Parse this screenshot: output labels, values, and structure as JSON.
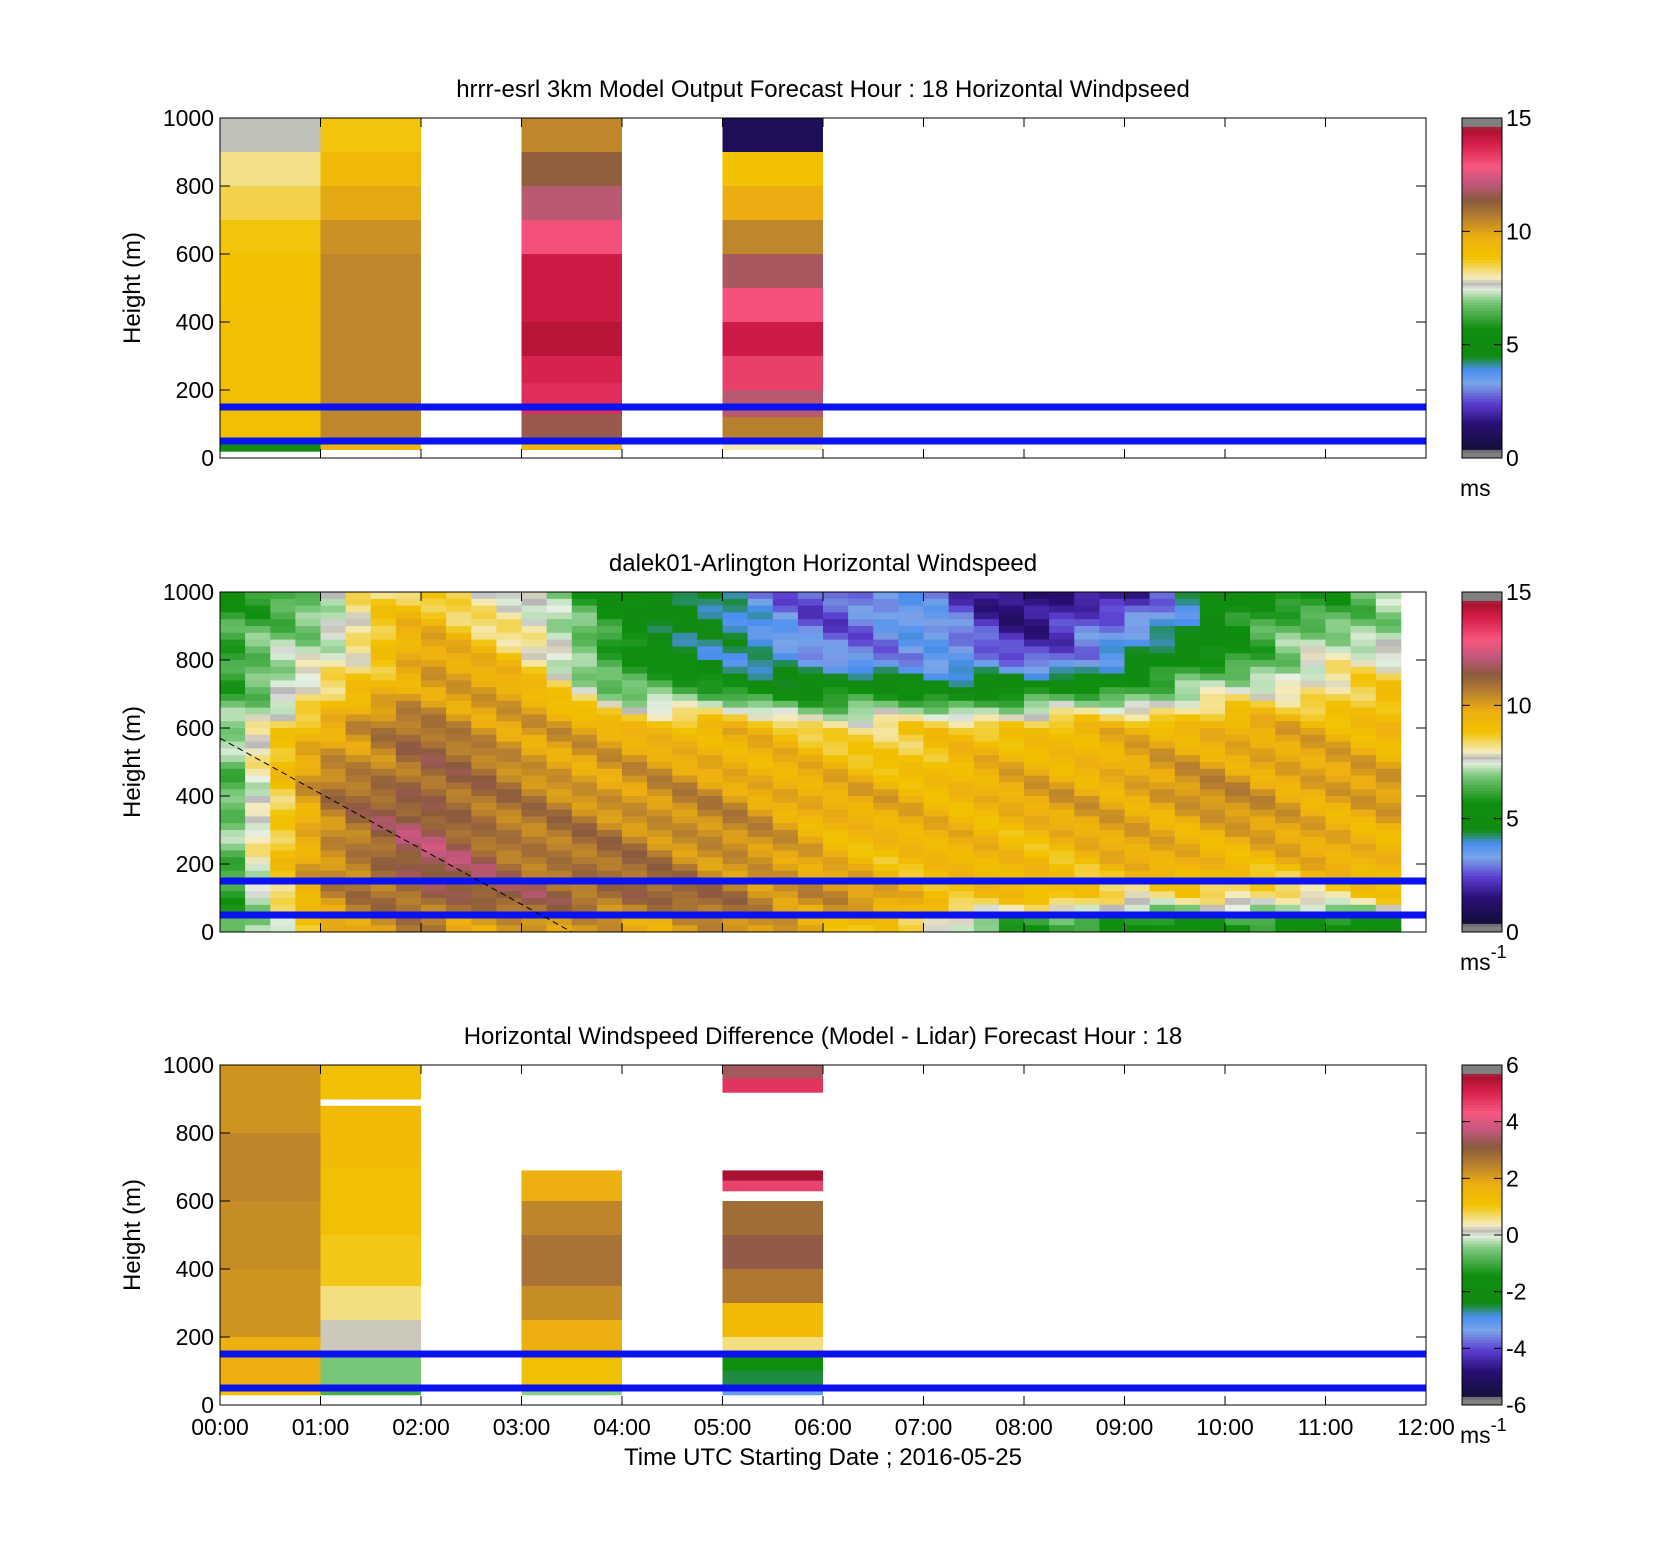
{
  "figure": {
    "xlabel": "Time UTC  Starting Date ; 2016-05-25",
    "xticks": [
      "00:00",
      "01:00",
      "02:00",
      "03:00",
      "04:00",
      "05:00",
      "06:00",
      "07:00",
      "08:00",
      "09:00",
      "10:00",
      "11:00",
      "12:00"
    ]
  },
  "chart_data": [
    {
      "type": "heatmap",
      "title": "hrrr-esrl 3km Model Output   Forecast Hour : 18 Horizontal Windpseed",
      "ylabel": "Height (m)",
      "xlim_hours": [
        0,
        12
      ],
      "ylim": [
        0,
        1000
      ],
      "yticks": [
        "0",
        "200",
        "400",
        "600",
        "800",
        "1000"
      ],
      "colorbar": {
        "range": [
          0,
          15
        ],
        "ticks": [
          "0",
          "5",
          "10",
          "15"
        ],
        "unit": "ms",
        "unit_sup": ""
      },
      "reference_lines_m": [
        50,
        150
      ],
      "columns": [
        {
          "start_hour": 0,
          "end_hour": 1,
          "cells": [
            [
              1000,
              900,
              7.7
            ],
            [
              900,
              800,
              8.2
            ],
            [
              800,
              700,
              8.5
            ],
            [
              700,
              600,
              8.8
            ],
            [
              600,
              450,
              8.9
            ],
            [
              450,
              60,
              9.0
            ],
            [
              60,
              40,
              7.0
            ],
            [
              40,
              20,
              4.5
            ]
          ]
        },
        {
          "start_hour": 1,
          "end_hour": 2,
          "cells": [
            [
              1000,
              900,
              8.8
            ],
            [
              900,
              800,
              9.3
            ],
            [
              800,
              700,
              9.9
            ],
            [
              700,
              600,
              10.3
            ],
            [
              600,
              60,
              10.5
            ],
            [
              60,
              25,
              9.5
            ]
          ]
        },
        {
          "start_hour": 3,
          "end_hour": 4,
          "cells": [
            [
              1000,
              900,
              10.5
            ],
            [
              900,
              800,
              11.3
            ],
            [
              800,
              700,
              12.0
            ],
            [
              700,
              600,
              13.0
            ],
            [
              600,
              400,
              14.0
            ],
            [
              400,
              300,
              14.3
            ],
            [
              300,
              220,
              13.8
            ],
            [
              220,
              130,
              13.6
            ],
            [
              130,
              60,
              11.6
            ],
            [
              60,
              25,
              9.5
            ]
          ]
        },
        {
          "start_hour": 5,
          "end_hour": 6,
          "cells": [
            [
              1000,
              900,
              1.0
            ],
            [
              900,
              800,
              8.9
            ],
            [
              800,
              700,
              9.8
            ],
            [
              700,
              600,
              10.5
            ],
            [
              600,
              500,
              11.8
            ],
            [
              500,
              400,
              13.0
            ],
            [
              400,
              300,
              14.0
            ],
            [
              300,
              200,
              13.3
            ],
            [
              200,
              120,
              12.0
            ],
            [
              120,
              60,
              10.6
            ],
            [
              60,
              25,
              8.0
            ]
          ]
        }
      ]
    },
    {
      "type": "heatmap",
      "title": "dalek01-Arlington  Horizontal Windspeed",
      "ylabel": "Height (m)",
      "xlim_hours": [
        0,
        12
      ],
      "ylim": [
        0,
        1000
      ],
      "yticks": [
        "0",
        "200",
        "400",
        "600",
        "800",
        "1000"
      ],
      "colorbar": {
        "range": [
          0,
          15
        ],
        "ticks": [
          "0",
          "5",
          "10",
          "15"
        ],
        "unit": "ms",
        "unit_sup": "-1"
      },
      "reference_lines_m": [
        50,
        150
      ],
      "dashed_line": {
        "x_hours": [
          0,
          3.5
        ],
        "y_m": [
          570,
          0
        ]
      },
      "profiles_hourly": [
        {
          "hour": 0,
          "levels": [
            [
              20,
              5.5
            ],
            [
              100,
              5.8
            ],
            [
              200,
              6.0
            ],
            [
              400,
              6.2
            ],
            [
              600,
              6.5
            ],
            [
              800,
              6.0
            ],
            [
              1000,
              5.5
            ]
          ]
        },
        {
          "hour": 1,
          "levels": [
            [
              20,
              9.5
            ],
            [
              100,
              10.0
            ],
            [
              200,
              10.3
            ],
            [
              400,
              10.5
            ],
            [
              600,
              10.0
            ],
            [
              700,
              8.0
            ],
            [
              800,
              7.5
            ],
            [
              1000,
              7.0
            ]
          ]
        },
        {
          "hour": 2,
          "levels": [
            [
              20,
              10.5
            ],
            [
              100,
              11.5
            ],
            [
              200,
              11.8
            ],
            [
              400,
              11.5
            ],
            [
              600,
              10.8
            ],
            [
              800,
              10.0
            ],
            [
              1000,
              9.0
            ]
          ]
        },
        {
          "hour": 3,
          "levels": [
            [
              20,
              10.0
            ],
            [
              100,
              11.3
            ],
            [
              200,
              11.0
            ],
            [
              400,
              10.5
            ],
            [
              600,
              10.2
            ],
            [
              800,
              9.0
            ],
            [
              1000,
              7.2
            ]
          ]
        },
        {
          "hour": 4,
          "levels": [
            [
              20,
              10.0
            ],
            [
              100,
              11.3
            ],
            [
              200,
              10.8
            ],
            [
              400,
              10.3
            ],
            [
              600,
              9.5
            ],
            [
              700,
              7.0
            ],
            [
              800,
              5.5
            ],
            [
              1000,
              5.5
            ]
          ]
        },
        {
          "hour": 5,
          "levels": [
            [
              20,
              10.2
            ],
            [
              100,
              11.0
            ],
            [
              200,
              10.5
            ],
            [
              400,
              10.2
            ],
            [
              600,
              9.5
            ],
            [
              700,
              6.0
            ],
            [
              800,
              4.5
            ],
            [
              1000,
              3.8
            ]
          ]
        },
        {
          "hour": 6,
          "levels": [
            [
              20,
              9.8
            ],
            [
              100,
              10.5
            ],
            [
              200,
              9.5
            ],
            [
              400,
              9.8
            ],
            [
              600,
              8.5
            ],
            [
              700,
              5.5
            ],
            [
              800,
              3.0
            ],
            [
              1000,
              2.5
            ]
          ]
        },
        {
          "hour": 7,
          "levels": [
            [
              20,
              8.0
            ],
            [
              100,
              9.5
            ],
            [
              200,
              9.2
            ],
            [
              400,
              9.5
            ],
            [
              600,
              8.5
            ],
            [
              700,
              5.5
            ],
            [
              800,
              3.5
            ],
            [
              1000,
              3.5
            ]
          ]
        },
        {
          "hour": 8,
          "levels": [
            [
              20,
              6.0
            ],
            [
              100,
              9.0
            ],
            [
              200,
              9.2
            ],
            [
              400,
              9.8
            ],
            [
              600,
              9.2
            ],
            [
              700,
              5.5
            ],
            [
              800,
              2.5
            ],
            [
              1000,
              1.0
            ]
          ]
        },
        {
          "hour": 9,
          "levels": [
            [
              20,
              5.5
            ],
            [
              100,
              8.5
            ],
            [
              200,
              9.5
            ],
            [
              400,
              10.0
            ],
            [
              600,
              9.3
            ],
            [
              700,
              6.5
            ],
            [
              800,
              4.0
            ],
            [
              1000,
              1.8
            ]
          ]
        },
        {
          "hour": 10,
          "levels": [
            [
              20,
              5.5
            ],
            [
              100,
              8.0
            ],
            [
              200,
              9.5
            ],
            [
              400,
              10.3
            ],
            [
              600,
              9.8
            ],
            [
              700,
              7.5
            ],
            [
              800,
              6.0
            ],
            [
              1000,
              5.0
            ]
          ]
        },
        {
          "hour": 11,
          "levels": [
            [
              20,
              5.5
            ],
            [
              100,
              8.3
            ],
            [
              200,
              9.5
            ],
            [
              400,
              10.0
            ],
            [
              600,
              9.5
            ],
            [
              700,
              8.5
            ],
            [
              800,
              7.5
            ],
            [
              1000,
              6.0
            ]
          ]
        },
        {
          "hour": 12,
          "levels": [
            [
              20,
              5.5
            ],
            [
              100,
              8.5
            ],
            [
              200,
              9.5
            ],
            [
              400,
              10.0
            ],
            [
              600,
              9.5
            ],
            [
              700,
              8.8
            ],
            [
              800,
              8.0
            ],
            [
              1000,
              7.0
            ]
          ]
        }
      ]
    },
    {
      "type": "heatmap",
      "title": "Horizontal Windspeed Difference (Model - Lidar) Forecast Hour : 18",
      "ylabel": "Height (m)",
      "xlim_hours": [
        0,
        12
      ],
      "ylim": [
        0,
        1000
      ],
      "yticks": [
        "0",
        "200",
        "400",
        "600",
        "800",
        "1000"
      ],
      "colorbar": {
        "range": [
          -6,
          6
        ],
        "ticks": [
          "-6",
          "-4",
          "-2",
          "0",
          "2",
          "4",
          "6"
        ],
        "unit": "ms",
        "unit_sup": "-1"
      },
      "reference_lines_m": [
        50,
        150
      ],
      "columns": [
        {
          "start_hour": 0,
          "end_hour": 1,
          "cells": [
            [
              1000,
              800,
              2.2
            ],
            [
              800,
              600,
              2.4
            ],
            [
              600,
              400,
              2.3
            ],
            [
              400,
              200,
              2.2
            ],
            [
              200,
              60,
              1.8
            ],
            [
              60,
              30,
              1.2
            ]
          ]
        },
        {
          "start_hour": 1,
          "end_hour": 2,
          "cells": [
            [
              1000,
              900,
              1.2
            ],
            [
              880,
              700,
              1.4
            ],
            [
              700,
              500,
              1.2
            ],
            [
              500,
              350,
              1.0
            ],
            [
              350,
              250,
              0.6
            ],
            [
              250,
              160,
              0.2
            ],
            [
              160,
              60,
              -0.5
            ],
            [
              60,
              30,
              -0.9
            ]
          ]
        },
        {
          "start_hour": 3,
          "end_hour": 4,
          "cells": [
            [
              690,
              600,
              1.8
            ],
            [
              600,
              500,
              2.4
            ],
            [
              500,
              350,
              2.7
            ],
            [
              350,
              250,
              2.3
            ],
            [
              250,
              150,
              1.8
            ],
            [
              150,
              60,
              1.2
            ],
            [
              60,
              30,
              -0.4
            ]
          ]
        },
        {
          "start_hour": 5,
          "end_hour": 6,
          "cells": [
            [
              1000,
              960,
              3.4
            ],
            [
              960,
              920,
              4.8
            ],
            [
              690,
              660,
              5.6
            ],
            [
              660,
              630,
              4.6
            ],
            [
              600,
              500,
              2.8
            ],
            [
              500,
              400,
              3.2
            ],
            [
              400,
              300,
              2.6
            ],
            [
              300,
              200,
              1.4
            ],
            [
              200,
              160,
              0.6
            ],
            [
              160,
              100,
              -1.5
            ],
            [
              100,
              60,
              -2.5
            ],
            [
              60,
              30,
              -3.2
            ]
          ]
        }
      ]
    }
  ]
}
